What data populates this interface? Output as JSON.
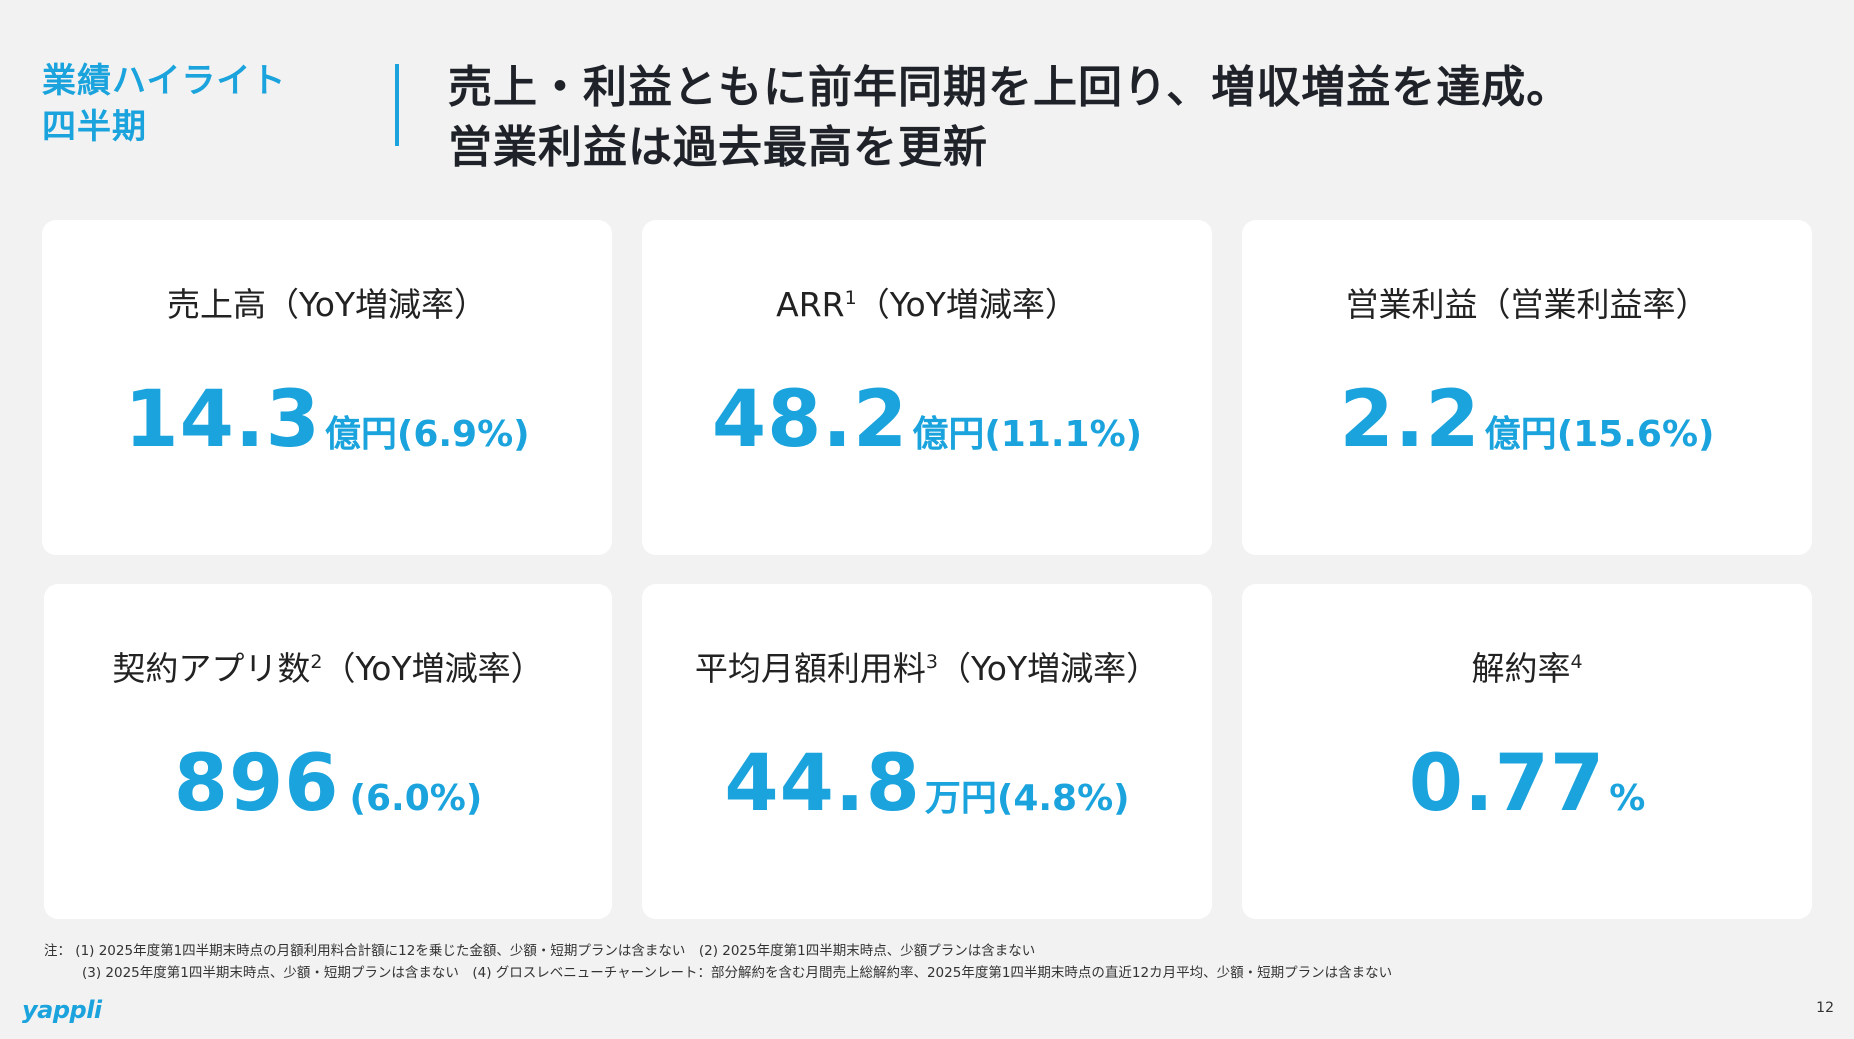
{
  "header": {
    "section_line1": "業績ハイライト",
    "section_line2": "四半期",
    "headline_line1": "売上・利益ともに前年同期を上回り、増収増益を達成。",
    "headline_line2": "営業利益は過去最高を更新",
    "accent_color": "#1aa3dc"
  },
  "cards": [
    {
      "title": "売上高（YoY増減率）",
      "sup": "",
      "value": "14.3",
      "unit": "億円",
      "pct": "(6.9%)"
    },
    {
      "title": "ARR",
      "sup": "1",
      "title_suffix": "（YoY増減率）",
      "value": "48.2",
      "unit": "億円",
      "pct": "(11.1%)"
    },
    {
      "title": "営業利益（営業利益率）",
      "sup": "",
      "value": "2.2",
      "unit": "億円",
      "pct": "(15.6%)"
    },
    {
      "title": "契約アプリ数",
      "sup": "2",
      "title_suffix": "（YoY増減率）",
      "value": "896",
      "unit": "",
      "pct": " (6.0%)"
    },
    {
      "title": "平均月額利用料",
      "sup": "3",
      "title_suffix": "（YoY増減率）",
      "value": "44.8",
      "unit": "万円",
      "pct": "(4.8%)"
    },
    {
      "title": "解約率",
      "sup": "4",
      "title_suffix": "",
      "value": "0.77",
      "unit": "",
      "pct": "%"
    }
  ],
  "notes": {
    "label": "注：",
    "line1": "(1) 2025年度第1四半期末時点の月額利用料合計額に12を乗じた金額、少額・短期プランは含まない　(2) 2025年度第1四半期末時点、少額プランは含まない",
    "line2": "(3) 2025年度第1四半期末時点、少額・短期プランは含まない　(4) グロスレベニューチャーンレート：部分解約を含む月間売上総解約率、2025年度第1四半期末時点の直近12カ月平均、少額・短期プランは含まない"
  },
  "footer": {
    "logo": "yappli",
    "page_number": "12"
  }
}
